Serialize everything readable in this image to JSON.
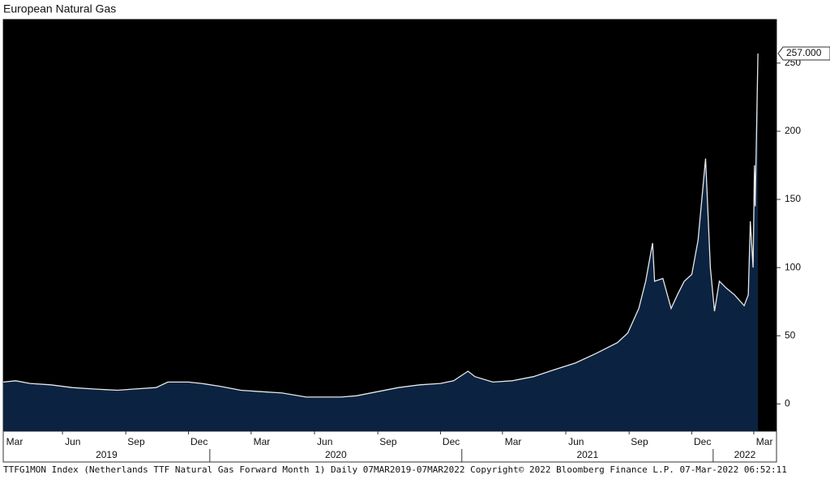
{
  "chart_data": {
    "type": "area",
    "title": "European Natural Gas",
    "footer": "TTFG1MON Index (Netherlands TTF Natural Gas Forward Month 1)  Daily 07MAR2019-07MAR2022 Copyright© 2022 Bloomberg Finance L.P. 07-Mar-2022 06:52:11",
    "x": [
      "2019-03-07",
      "2019-03-25",
      "2019-04-15",
      "2019-05-15",
      "2019-06-15",
      "2019-07-15",
      "2019-08-20",
      "2019-09-15",
      "2019-10-15",
      "2019-11-01",
      "2019-12-01",
      "2019-12-20",
      "2020-01-15",
      "2020-02-15",
      "2020-03-15",
      "2020-04-15",
      "2020-05-20",
      "2020-06-15",
      "2020-07-10",
      "2020-08-01",
      "2020-09-01",
      "2020-10-01",
      "2020-11-01",
      "2020-12-01",
      "2020-12-20",
      "2021-01-10",
      "2021-01-20",
      "2021-02-15",
      "2021-03-15",
      "2021-04-15",
      "2021-05-15",
      "2021-06-15",
      "2021-07-15",
      "2021-08-15",
      "2021-08-30",
      "2021-09-15",
      "2021-09-25",
      "2021-10-05",
      "2021-10-08",
      "2021-10-20",
      "2021-11-01",
      "2021-11-10",
      "2021-11-20",
      "2021-12-01",
      "2021-12-10",
      "2021-12-21",
      "2021-12-28",
      "2022-01-03",
      "2022-01-10",
      "2022-01-20",
      "2022-02-01",
      "2022-02-15",
      "2022-02-21",
      "2022-02-24",
      "2022-02-28",
      "2022-03-02",
      "2022-03-03",
      "2022-03-07"
    ],
    "values": [
      16,
      17,
      15,
      14,
      12,
      11,
      10,
      11,
      12,
      16,
      16,
      15,
      13,
      10,
      9,
      8,
      5,
      5,
      5,
      6,
      9,
      12,
      14,
      15,
      17,
      24,
      20,
      16,
      17,
      20,
      25,
      30,
      37,
      45,
      52,
      70,
      90,
      118,
      90,
      92,
      70,
      80,
      90,
      95,
      120,
      180,
      100,
      68,
      90,
      85,
      80,
      72,
      80,
      134,
      100,
      175,
      145,
      257
    ],
    "value_labels": [
      null,
      null,
      null,
      null,
      null,
      null,
      null,
      null,
      null,
      null,
      null,
      null,
      null,
      null,
      null,
      null,
      null,
      null,
      null,
      null,
      null,
      null,
      null,
      null,
      null,
      null,
      null,
      null,
      null,
      null,
      null,
      null,
      null,
      null,
      null,
      null,
      null,
      null,
      null,
      null,
      null,
      null,
      null,
      null,
      null,
      null,
      null,
      null,
      null,
      null,
      null,
      null,
      null,
      null,
      null,
      null,
      null,
      "257.000"
    ],
    "color": "#0b2340",
    "line_color": "#e8e8e8",
    "background": "#000000",
    "xlim": [
      "2019-03-07",
      "2022-04-03"
    ],
    "xticks": [
      {
        "value": "2019-03",
        "label": "Mar"
      },
      {
        "value": "2019-06",
        "label": "Jun"
      },
      {
        "value": "2019-09",
        "label": "Sep"
      },
      {
        "value": "2019-12",
        "label": "Dec"
      },
      {
        "value": "2020-03",
        "label": "Mar"
      },
      {
        "value": "2020-06",
        "label": "Jun"
      },
      {
        "value": "2020-09",
        "label": "Sep"
      },
      {
        "value": "2020-12",
        "label": "Dec"
      },
      {
        "value": "2021-03",
        "label": "Mar"
      },
      {
        "value": "2021-06",
        "label": "Jun"
      },
      {
        "value": "2021-09",
        "label": "Sep"
      },
      {
        "value": "2021-12",
        "label": "Dec"
      },
      {
        "value": "2022-03",
        "label": "Mar"
      }
    ],
    "year_ticks": [
      "2019",
      "2020",
      "2021",
      "2022"
    ],
    "ylim": [
      -20,
      282
    ],
    "yticks": [
      0,
      50,
      100,
      150,
      200,
      250
    ]
  }
}
